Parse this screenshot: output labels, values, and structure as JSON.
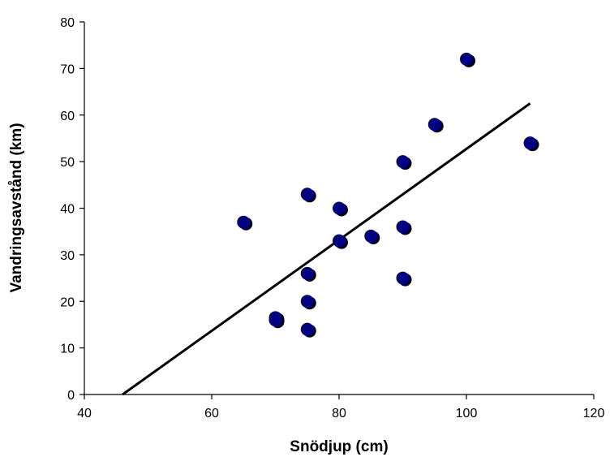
{
  "chart_data": {
    "type": "scatter",
    "xlabel": "Snödjup (cm)",
    "ylabel": "Vandringsavstånd (km)",
    "xlim": [
      40,
      120
    ],
    "ylim": [
      0,
      80
    ],
    "x_ticks": [
      40,
      60,
      80,
      100,
      120
    ],
    "y_ticks": [
      0,
      10,
      20,
      30,
      40,
      50,
      60,
      70,
      80
    ],
    "x_tick_labels": [
      "40",
      "60",
      "80",
      "100",
      "120"
    ],
    "y_tick_labels": [
      "0",
      "10",
      "20",
      "30",
      "40",
      "50",
      "60",
      "70",
      "80"
    ],
    "grid": false,
    "legend": "none",
    "marker_color": "#000080",
    "marker_shadow_color": "#000000",
    "series": [
      {
        "points": [
          [
            65,
            37
          ],
          [
            70,
            16.5
          ],
          [
            70,
            16
          ],
          [
            75,
            43
          ],
          [
            75,
            26
          ],
          [
            75,
            20
          ],
          [
            75,
            14
          ],
          [
            80,
            40
          ],
          [
            80,
            33
          ],
          [
            85,
            34
          ],
          [
            90,
            50
          ],
          [
            90,
            36
          ],
          [
            90,
            25
          ],
          [
            95,
            58
          ],
          [
            100,
            72
          ],
          [
            110,
            54
          ]
        ]
      }
    ],
    "trendline": {
      "x": [
        46,
        110
      ],
      "y": [
        0,
        62.5
      ],
      "color": "#000000"
    }
  }
}
